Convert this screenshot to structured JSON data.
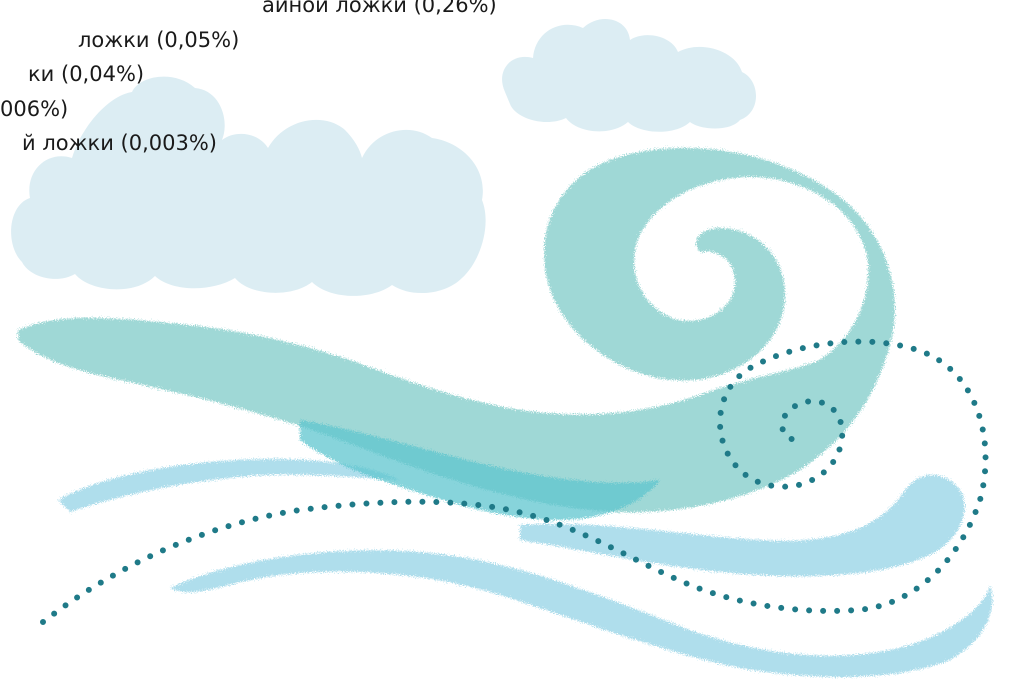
{
  "text_lines": [
    "айной ложки (0,26%)",
    "ложки (0,05%)",
    "ки (0,04%)",
    "006%)",
    "й ложки (0,003%)"
  ],
  "colors": {
    "cloud": "#dcedf3",
    "wave_main": "#9fd8d6",
    "wave_deep": "#5fc6cf",
    "wave_light": "#a9dceb",
    "dots": "#1f7a88",
    "text": "#1a1a1a"
  }
}
